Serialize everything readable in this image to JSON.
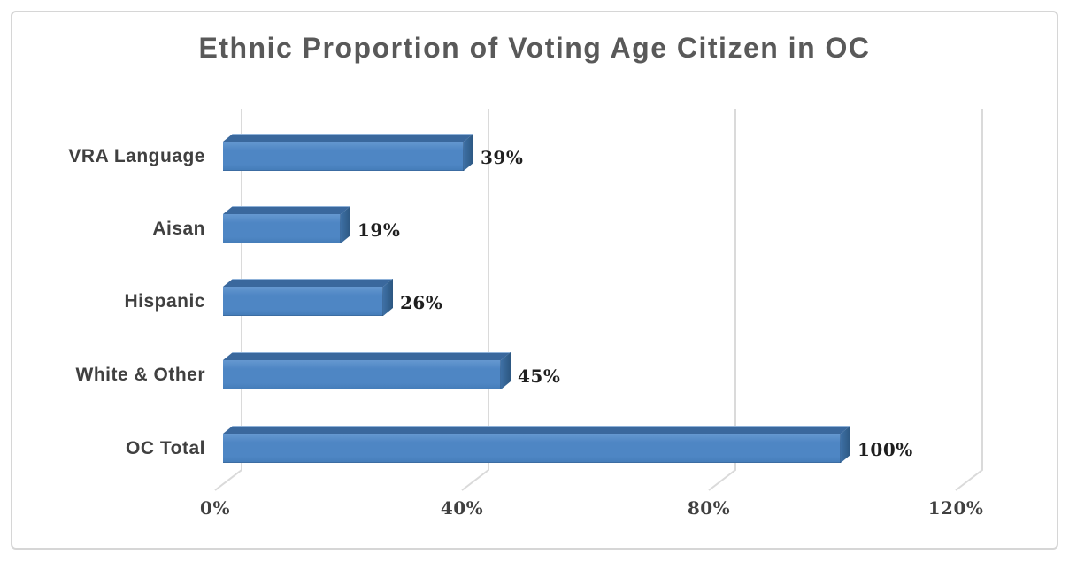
{
  "chart_data": {
    "type": "bar",
    "orientation": "horizontal",
    "style": "3d",
    "title": "Ethnic Proportion of Voting Age Citizen in OC",
    "categories": [
      "VRA Language",
      "Aisan",
      "Hispanic",
      "White & Other",
      "OC Total"
    ],
    "values": [
      39,
      19,
      26,
      45,
      100
    ],
    "data_labels": [
      "39%",
      "19%",
      "26%",
      "45%",
      "100%"
    ],
    "x_ticks": [
      "0%",
      "40%",
      "80%",
      "120%"
    ],
    "x_tick_values": [
      0,
      40,
      80,
      120
    ],
    "xlim": [
      0,
      120
    ],
    "grid": true,
    "legend": "none",
    "colors": {
      "bar_face": "#4E86C4",
      "bar_face_light": "#6598D0",
      "bar_face_dark": "#447CB8",
      "bar_top": "#3A689D",
      "bar_top_highlight": "#8FB2D9",
      "bar_side_light": "#3E70A5",
      "bar_side_dark": "#2C5781",
      "gridline": "#DADADA",
      "title_text": "#595959",
      "category_text": "#404040",
      "tick_text": "#404040",
      "value_text": "#1F1F1F",
      "frame_border": "#D6D6D6",
      "background": "#FFFFFF"
    }
  }
}
